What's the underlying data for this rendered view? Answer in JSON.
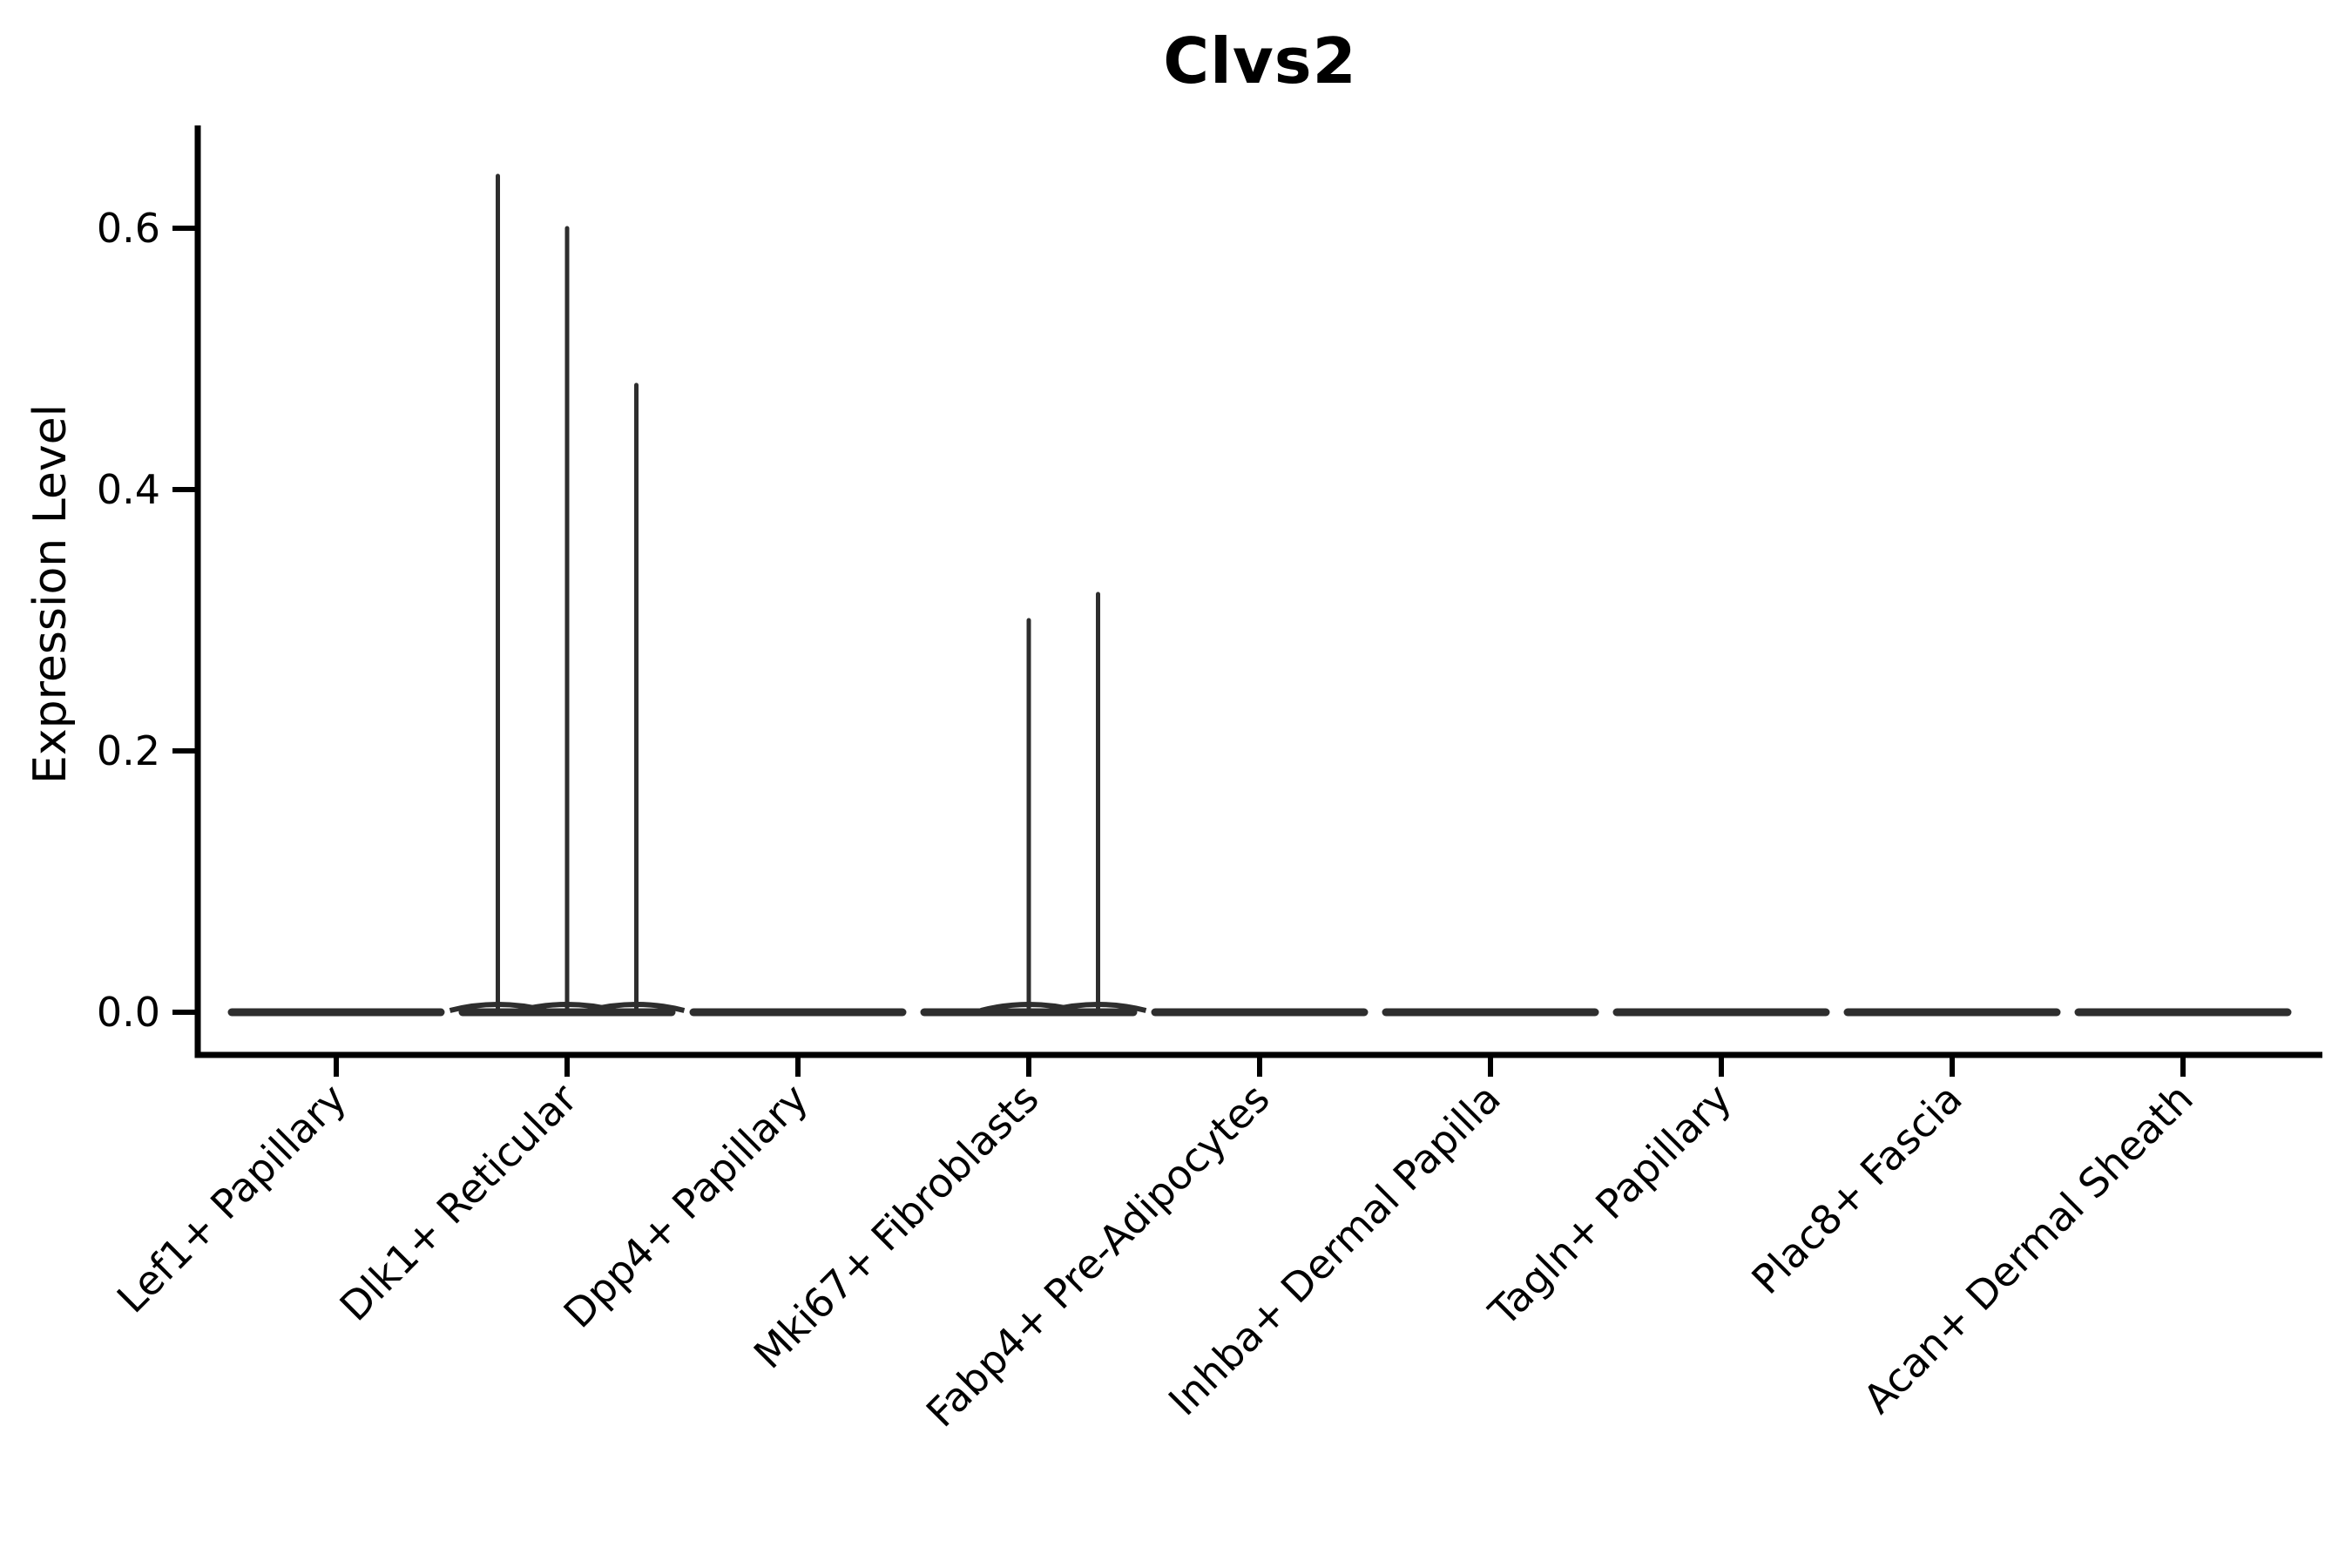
{
  "page": {
    "background": "#ffffff"
  },
  "chart_data": {
    "type": "violin",
    "title": "Clvs2",
    "xlabel": "",
    "ylabel": "Expression Level",
    "yticks": [
      0.0,
      0.2,
      0.4,
      0.6
    ],
    "ytick_labels": [
      "0.0",
      "0.2",
      "0.4",
      "0.6"
    ],
    "ylim": [
      -0.033,
      0.68
    ],
    "grid": false,
    "legend_position": "none",
    "x_tick_rotation_deg": 45,
    "categories": [
      "Lef1+ Papillary",
      "Dlk1+ Reticular",
      "Dpp4+ Papillary",
      "Mki67+ Fibroblasts",
      "Fabp4+ Pre-Adipocytes",
      "Inhba+ Dermal Papilla",
      "Tagln+ Papillary",
      "Plac8+ Fascia",
      "Acan+ Dermal Sheath"
    ],
    "violins": [
      {
        "category": "Lef1+ Papillary",
        "baseline_expression": 0.0,
        "spikes": []
      },
      {
        "category": "Dlk1+ Reticular",
        "baseline_expression": 0.0,
        "spikes": [
          {
            "offset_frac": -0.3,
            "max_expression": 0.64
          },
          {
            "offset_frac": 0.0,
            "max_expression": 0.6
          },
          {
            "offset_frac": 0.3,
            "max_expression": 0.48
          }
        ]
      },
      {
        "category": "Dpp4+ Papillary",
        "baseline_expression": 0.0,
        "spikes": []
      },
      {
        "category": "Mki67+ Fibroblasts",
        "baseline_expression": 0.0,
        "spikes": [
          {
            "offset_frac": 0.0,
            "max_expression": 0.3
          },
          {
            "offset_frac": 0.3,
            "max_expression": 0.32
          }
        ]
      },
      {
        "category": "Fabp4+ Pre-Adipocytes",
        "baseline_expression": 0.0,
        "spikes": []
      },
      {
        "category": "Inhba+ Dermal Papilla",
        "baseline_expression": 0.0,
        "spikes": []
      },
      {
        "category": "Tagln+ Papillary",
        "baseline_expression": 0.0,
        "spikes": []
      },
      {
        "category": "Plac8+ Fascia",
        "baseline_expression": 0.0,
        "spikes": []
      },
      {
        "category": "Acan+ Dermal Sheath",
        "baseline_expression": 0.0,
        "spikes": []
      }
    ]
  },
  "colors": {
    "violin_stroke": "#2e2e2e",
    "axis": "#000000",
    "text": "#000000",
    "background": "#ffffff"
  }
}
